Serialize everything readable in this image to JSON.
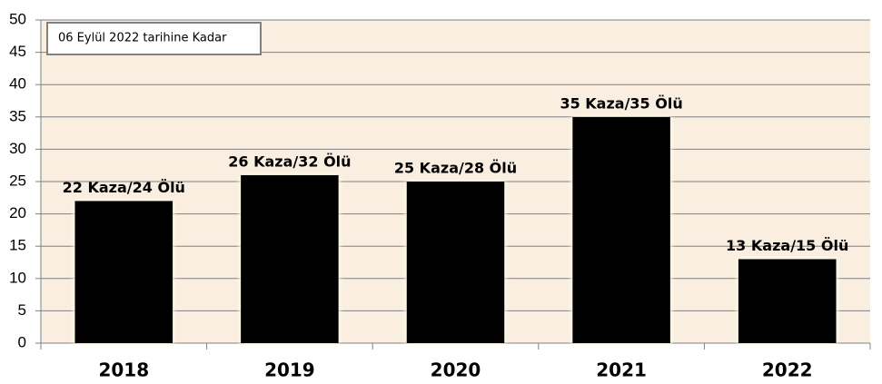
{
  "chart_data": {
    "type": "bar",
    "annotation": "06 Eylül 2022 tarihine Kadar",
    "categories": [
      "2018",
      "2019",
      "2020",
      "2021",
      "2022"
    ],
    "values": [
      22,
      26,
      25,
      35,
      13
    ],
    "value_labels": [
      "22 Kaza/24 Ölü",
      "26 Kaza/32 Ölü",
      "25 Kaza/28 Ölü",
      "35 Kaza/35 Ölü",
      "13 Kaza/15 Ölü"
    ],
    "color": "#000000",
    "ylim": [
      0,
      50
    ],
    "yticks": [
      0,
      5,
      10,
      15,
      20,
      25,
      30,
      35,
      40,
      45,
      50
    ],
    "grid": true
  }
}
